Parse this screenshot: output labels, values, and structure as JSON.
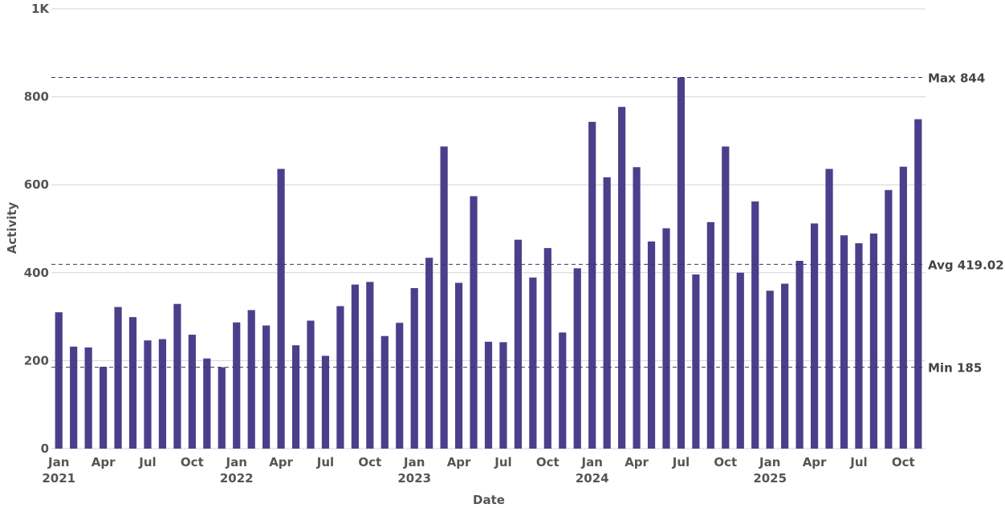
{
  "chart_data": {
    "type": "bar",
    "xlabel": "Date",
    "ylabel": "Activity",
    "ylim": [
      0,
      1000
    ],
    "y_ticks": [
      {
        "value": 0,
        "label": "0"
      },
      {
        "value": 200,
        "label": "200"
      },
      {
        "value": 400,
        "label": "400"
      },
      {
        "value": 600,
        "label": "600"
      },
      {
        "value": 800,
        "label": "800"
      },
      {
        "value": 1000,
        "label": "1K"
      }
    ],
    "x_ticks": [
      {
        "index": 0,
        "label": "Jan",
        "year": "2021"
      },
      {
        "index": 3,
        "label": "Apr"
      },
      {
        "index": 6,
        "label": "Jul"
      },
      {
        "index": 9,
        "label": "Oct"
      },
      {
        "index": 12,
        "label": "Jan",
        "year": "2022"
      },
      {
        "index": 15,
        "label": "Apr"
      },
      {
        "index": 18,
        "label": "Jul"
      },
      {
        "index": 21,
        "label": "Oct"
      },
      {
        "index": 24,
        "label": "Jan",
        "year": "2023"
      },
      {
        "index": 27,
        "label": "Apr"
      },
      {
        "index": 30,
        "label": "Jul"
      },
      {
        "index": 33,
        "label": "Oct"
      },
      {
        "index": 36,
        "label": "Jan",
        "year": "2024"
      },
      {
        "index": 39,
        "label": "Apr"
      },
      {
        "index": 42,
        "label": "Jul"
      },
      {
        "index": 45,
        "label": "Oct"
      },
      {
        "index": 48,
        "label": "Jan",
        "year": "2025"
      },
      {
        "index": 51,
        "label": "Apr"
      },
      {
        "index": 54,
        "label": "Jul"
      },
      {
        "index": 57,
        "label": "Oct"
      }
    ],
    "categories": [
      "2021-01",
      "2021-02",
      "2021-03",
      "2021-04",
      "2021-05",
      "2021-06",
      "2021-07",
      "2021-08",
      "2021-09",
      "2021-10",
      "2021-11",
      "2021-12",
      "2022-01",
      "2022-02",
      "2022-03",
      "2022-04",
      "2022-05",
      "2022-06",
      "2022-07",
      "2022-08",
      "2022-09",
      "2022-10",
      "2022-11",
      "2022-12",
      "2023-01",
      "2023-02",
      "2023-03",
      "2023-04",
      "2023-05",
      "2023-06",
      "2023-07",
      "2023-08",
      "2023-09",
      "2023-10",
      "2023-11",
      "2023-12",
      "2024-01",
      "2024-02",
      "2024-03",
      "2024-04",
      "2024-05",
      "2024-06",
      "2024-07",
      "2024-08",
      "2024-09",
      "2024-10",
      "2024-11",
      "2024-12",
      "2025-01",
      "2025-02",
      "2025-03",
      "2025-04",
      "2025-05",
      "2025-06",
      "2025-07",
      "2025-08",
      "2025-09",
      "2025-10",
      "2025-11"
    ],
    "values": [
      310,
      232,
      230,
      186,
      322,
      299,
      246,
      249,
      329,
      259,
      205,
      185,
      287,
      315,
      280,
      636,
      235,
      291,
      211,
      324,
      373,
      379,
      256,
      286,
      365,
      434,
      687,
      377,
      574,
      243,
      242,
      475,
      389,
      456,
      264,
      410,
      743,
      617,
      777,
      640,
      471,
      501,
      844,
      396,
      515,
      687,
      400,
      562,
      359,
      375,
      427,
      512,
      636,
      485,
      467,
      489,
      588,
      641,
      749
    ],
    "bar_color": "#4b3f8c",
    "reference_lines": [
      {
        "value": 844,
        "label": "Max 844"
      },
      {
        "value": 419.02,
        "label": "Avg 419.02"
      },
      {
        "value": 185,
        "label": "Min 185"
      }
    ],
    "grid": true
  }
}
